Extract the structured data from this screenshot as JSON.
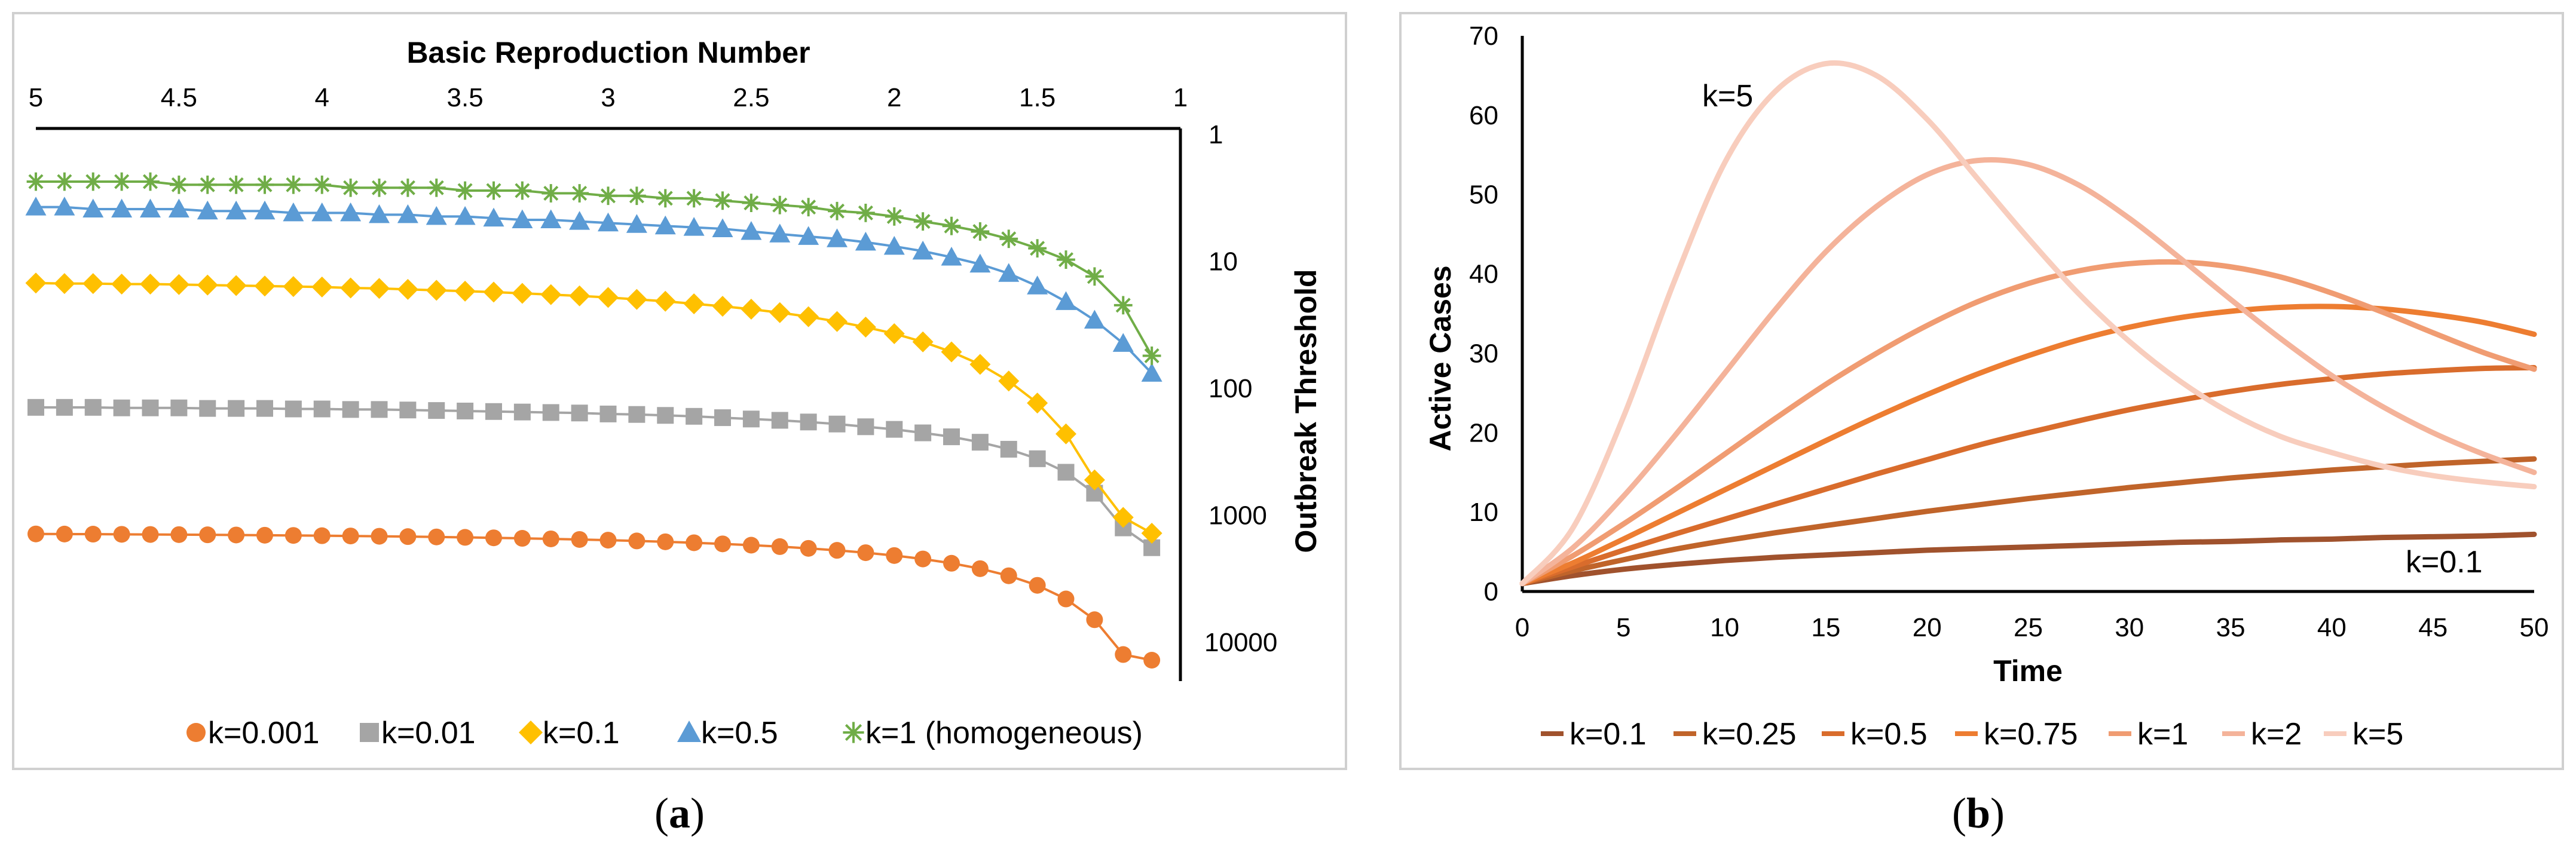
{
  "chart_data": [
    {
      "type": "line",
      "panel_caption": "a",
      "xlabel": "Basic Reproduction Number",
      "ylabel": "Outbreak Threshold",
      "x_axis_position": "top",
      "x_reversed": true,
      "y_axis_position": "right",
      "y_scale": "log",
      "y_reversed": true,
      "xlim": [
        5,
        1
      ],
      "ylim": [
        1,
        10000
      ],
      "x_ticks": [
        "5",
        "4.5",
        "4",
        "3.5",
        "3",
        "2.5",
        "2",
        "1.5",
        "1"
      ],
      "y_ticks": [
        "1",
        "10",
        "100",
        "1000",
        "10000"
      ],
      "legend_position": "bottom",
      "series": [
        {
          "name": "k=0.001",
          "color": "#ED7D31",
          "marker": "circle",
          "x": [
            5.0,
            4.9,
            4.8,
            4.7,
            4.6,
            4.5,
            4.4,
            4.3,
            4.2,
            4.1,
            4.0,
            3.9,
            3.8,
            3.7,
            3.6,
            3.5,
            3.4,
            3.3,
            3.2,
            3.1,
            3.0,
            2.9,
            2.8,
            2.7,
            2.6,
            2.5,
            2.4,
            2.3,
            2.2,
            2.1,
            2.0,
            1.9,
            1.8,
            1.7,
            1.6,
            1.5,
            1.4,
            1.3,
            1.2,
            1.1
          ],
          "values": [
            1013,
            1015,
            1017,
            1020,
            1023,
            1026,
            1029,
            1033,
            1037,
            1041,
            1046,
            1051,
            1057,
            1063,
            1070,
            1078,
            1087,
            1097,
            1108,
            1120,
            1134,
            1150,
            1168,
            1189,
            1213,
            1242,
            1275,
            1316,
            1364,
            1424,
            1499,
            1595,
            1724,
            1902,
            2163,
            2573,
            3295,
            4800,
            9023,
            10000
          ]
        },
        {
          "name": "k=0.01",
          "color": "#A5A5A5",
          "marker": "square",
          "x": [
            5.0,
            4.9,
            4.8,
            4.7,
            4.6,
            4.5,
            4.4,
            4.3,
            4.2,
            4.1,
            4.0,
            3.9,
            3.8,
            3.7,
            3.6,
            3.5,
            3.4,
            3.3,
            3.2,
            3.1,
            3.0,
            2.9,
            2.8,
            2.7,
            2.6,
            2.5,
            2.4,
            2.3,
            2.2,
            2.1,
            2.0,
            1.9,
            1.8,
            1.7,
            1.6,
            1.5,
            1.4,
            1.3,
            1.2,
            1.1
          ],
          "values": [
            102,
            102,
            102,
            103,
            103,
            103,
            104,
            104,
            104,
            105,
            105,
            106,
            106,
            107,
            108,
            109,
            110,
            111,
            112,
            113,
            115,
            116,
            118,
            120,
            123,
            126,
            129,
            133,
            138,
            145,
            152,
            162,
            174,
            192,
            218,
            259,
            331,
            484,
            908,
            1300
          ]
        },
        {
          "name": "k=0.1",
          "color": "#FFC000",
          "marker": "diamond",
          "x": [
            5.0,
            4.9,
            4.8,
            4.7,
            4.6,
            4.5,
            4.4,
            4.3,
            4.2,
            4.1,
            4.0,
            3.9,
            3.8,
            3.7,
            3.6,
            3.5,
            3.4,
            3.3,
            3.2,
            3.1,
            3.0,
            2.9,
            2.8,
            2.7,
            2.6,
            2.5,
            2.4,
            2.3,
            2.2,
            2.1,
            2.0,
            1.9,
            1.8,
            1.7,
            1.6,
            1.5,
            1.4,
            1.3,
            1.2,
            1.1
          ],
          "values": [
            10.7,
            10.8,
            10.8,
            10.9,
            10.9,
            11.0,
            11.1,
            11.2,
            11.3,
            11.4,
            11.5,
            11.7,
            11.8,
            12.0,
            12.2,
            12.4,
            12.6,
            12.9,
            13.2,
            13.5,
            13.9,
            14.4,
            14.9,
            15.6,
            16.3,
            17.2,
            18.3,
            19.7,
            21.5,
            23.8,
            26.8,
            31.1,
            37.3,
            46.8,
            63.3,
            94.3,
            165,
            380,
            750,
            1000
          ]
        },
        {
          "name": "k=0.5",
          "color": "#5B9BD5",
          "marker": "triangle",
          "x": [
            5.0,
            4.9,
            4.8,
            4.7,
            4.6,
            4.5,
            4.4,
            4.3,
            4.2,
            4.1,
            4.0,
            3.9,
            3.8,
            3.7,
            3.6,
            3.5,
            3.4,
            3.3,
            3.2,
            3.1,
            3.0,
            2.9,
            2.8,
            2.7,
            2.6,
            2.5,
            2.4,
            2.3,
            2.2,
            2.1,
            2.0,
            1.9,
            1.8,
            1.7,
            1.6,
            1.5,
            1.4,
            1.3,
            1.2,
            1.1
          ],
          "values": [
            2.7,
            2.7,
            2.8,
            2.8,
            2.8,
            2.8,
            2.9,
            2.9,
            2.9,
            3.0,
            3.0,
            3.0,
            3.1,
            3.1,
            3.2,
            3.2,
            3.3,
            3.4,
            3.4,
            3.5,
            3.6,
            3.7,
            3.8,
            3.9,
            4.0,
            4.2,
            4.4,
            4.6,
            4.8,
            5.1,
            5.5,
            6.0,
            6.7,
            7.6,
            9.0,
            11.3,
            15.0,
            21.0,
            32.0,
            55.0
          ]
        },
        {
          "name": "k=1 (homogeneous)",
          "color": "#70AD47",
          "marker": "star",
          "x": [
            5.0,
            4.9,
            4.8,
            4.7,
            4.6,
            4.5,
            4.4,
            4.3,
            4.2,
            4.1,
            4.0,
            3.9,
            3.8,
            3.7,
            3.6,
            3.5,
            3.4,
            3.3,
            3.2,
            3.1,
            3.0,
            2.9,
            2.8,
            2.7,
            2.6,
            2.5,
            2.4,
            2.3,
            2.2,
            2.1,
            2.0,
            1.9,
            1.8,
            1.7,
            1.6,
            1.5,
            1.4,
            1.3,
            1.2,
            1.1
          ],
          "values": [
            1.7,
            1.7,
            1.7,
            1.7,
            1.7,
            1.8,
            1.8,
            1.8,
            1.8,
            1.8,
            1.8,
            1.9,
            1.9,
            1.9,
            1.9,
            2.0,
            2.0,
            2.0,
            2.1,
            2.1,
            2.2,
            2.2,
            2.3,
            2.3,
            2.4,
            2.5,
            2.6,
            2.7,
            2.9,
            3.0,
            3.2,
            3.5,
            3.8,
            4.2,
            4.8,
            5.7,
            7.0,
            9.5,
            16.0,
            40.0
          ]
        }
      ]
    },
    {
      "type": "line",
      "panel_caption": "b",
      "xlabel": "Time",
      "ylabel": "Active Cases",
      "xlim": [
        0,
        50
      ],
      "ylim": [
        0,
        70
      ],
      "x_ticks": [
        "0",
        "5",
        "10",
        "15",
        "20",
        "25",
        "30",
        "35",
        "40",
        "45",
        "50"
      ],
      "y_ticks": [
        "0",
        "10",
        "20",
        "30",
        "40",
        "50",
        "60",
        "70"
      ],
      "legend_position": "bottom",
      "annotations": [
        "k=5",
        "k=0.1"
      ],
      "x": [
        0,
        2.5,
        5,
        7.5,
        10,
        12.5,
        15,
        17.5,
        20,
        22.5,
        25,
        27.5,
        30,
        32.5,
        35,
        37.5,
        40,
        42.5,
        45,
        47.5,
        50
      ],
      "series": [
        {
          "name": "k=0.1",
          "color": "#A0522D",
          "values": [
            1.0,
            2.0,
            2.8,
            3.4,
            3.9,
            4.3,
            4.6,
            4.9,
            5.2,
            5.4,
            5.6,
            5.8,
            6.0,
            6.2,
            6.3,
            6.5,
            6.6,
            6.8,
            6.9,
            7.0,
            7.2
          ]
        },
        {
          "name": "k=0.25",
          "color": "#C0642A",
          "values": [
            1.0,
            2.6,
            4.0,
            5.3,
            6.4,
            7.4,
            8.3,
            9.2,
            10.1,
            10.9,
            11.7,
            12.4,
            13.1,
            13.7,
            14.3,
            14.8,
            15.3,
            15.7,
            16.1,
            16.4,
            16.7
          ]
        },
        {
          "name": "k=0.5",
          "color": "#D96C2C",
          "values": [
            1.0,
            3.1,
            5.2,
            7.2,
            9.1,
            11.0,
            12.9,
            14.8,
            16.6,
            18.4,
            20.0,
            21.5,
            22.9,
            24.1,
            25.2,
            26.1,
            26.8,
            27.4,
            27.8,
            28.1,
            28.2
          ]
        },
        {
          "name": "k=0.75",
          "color": "#ED7D31",
          "values": [
            1.0,
            3.6,
            6.6,
            9.7,
            12.8,
            15.9,
            19.0,
            22.0,
            24.8,
            27.4,
            29.7,
            31.7,
            33.3,
            34.5,
            35.3,
            35.8,
            35.9,
            35.6,
            34.9,
            33.9,
            32.4
          ]
        },
        {
          "name": "k=1",
          "color": "#F09C72",
          "values": [
            1.0,
            4.5,
            8.5,
            12.8,
            17.3,
            21.8,
            26.1,
            30.0,
            33.5,
            36.5,
            38.8,
            40.4,
            41.3,
            41.5,
            40.9,
            39.6,
            37.6,
            35.2,
            32.6,
            30.1,
            28.0
          ]
        },
        {
          "name": "k=2",
          "color": "#F4B39A",
          "values": [
            1.0,
            5.5,
            12.0,
            19.5,
            27.5,
            35.5,
            42.8,
            48.5,
            52.5,
            54.3,
            53.8,
            51.2,
            47.0,
            42.0,
            36.8,
            31.8,
            27.2,
            23.3,
            20.0,
            17.3,
            15.0
          ]
        },
        {
          "name": "k=5",
          "color": "#F8CDBD",
          "values": [
            1.0,
            8.0,
            22.0,
            39.0,
            54.0,
            63.0,
            66.5,
            65.0,
            59.5,
            52.0,
            44.5,
            37.5,
            31.5,
            26.5,
            22.5,
            19.5,
            17.5,
            15.8,
            14.6,
            13.8,
            13.2
          ]
        }
      ]
    }
  ]
}
